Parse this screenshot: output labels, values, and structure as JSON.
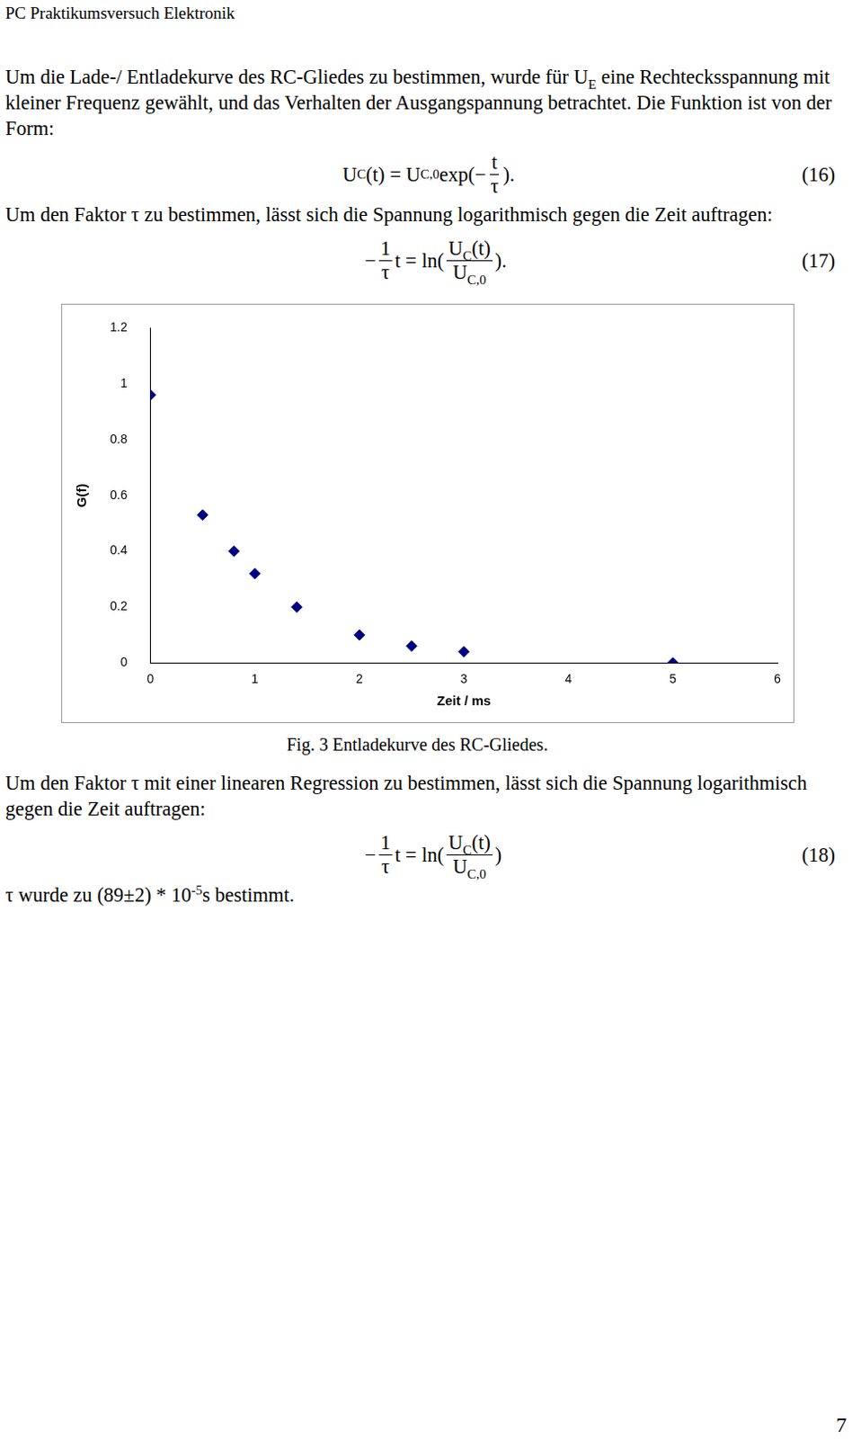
{
  "document": {
    "header": "PC Praktikumsversuch Elektronik",
    "content": [
      {
        "kind": "paragraph",
        "parts": [
          {
            "t": "Um die Lade-/ Entladekurve des RC-Gliedes zu bestimmen, wurde für U"
          },
          {
            "sub": "E"
          },
          {
            "t": " eine Rechtecksspannung mit kleiner Frequenz gewählt, und das Verhalten der Ausgangspannung betrachtet. Die Funktion ist von der Form:"
          }
        ]
      },
      {
        "kind": "equation",
        "number": "(16)",
        "parts": [
          {
            "t": "U"
          },
          {
            "sub": "C"
          },
          {
            "t": "(t) = U"
          },
          {
            "sub": "C,0"
          },
          {
            "t": " exp(−"
          },
          {
            "frac": {
              "num": [
                {
                  "t": "t"
                }
              ],
              "den": [
                {
                  "t": "τ"
                }
              ]
            }
          },
          {
            "t": ")."
          }
        ]
      },
      {
        "kind": "paragraph",
        "parts": [
          {
            "t": "Um den Faktor τ zu bestimmen, lässt sich die Spannung logarithmisch gegen die Zeit auftragen:"
          }
        ]
      },
      {
        "kind": "equation",
        "number": "(17)",
        "parts": [
          {
            "t": "−"
          },
          {
            "frac": {
              "num": [
                {
                  "t": "1"
                }
              ],
              "den": [
                {
                  "t": "τ"
                }
              ]
            }
          },
          {
            "t": "t = ln("
          },
          {
            "frac": {
              "num": [
                {
                  "t": "U"
                },
                {
                  "sub": "C"
                },
                {
                  "t": "(t)"
                }
              ],
              "den": [
                {
                  "t": "U"
                },
                {
                  "sub": "C,0"
                }
              ]
            }
          },
          {
            "t": ")."
          }
        ]
      },
      {
        "kind": "figure",
        "caption": "Fig. 3 Entladekurve des RC-Gliedes."
      },
      {
        "kind": "paragraph",
        "parts": [
          {
            "t": "Um den Faktor τ mit einer linearen Regression zu bestimmen, lässt sich die Spannung logarithmisch gegen die Zeit auftragen:"
          }
        ]
      },
      {
        "kind": "equation",
        "number": "(18)",
        "parts": [
          {
            "t": "−"
          },
          {
            "frac": {
              "num": [
                {
                  "t": "1"
                }
              ],
              "den": [
                {
                  "t": "τ"
                }
              ]
            }
          },
          {
            "t": "t = ln("
          },
          {
            "frac": {
              "num": [
                {
                  "t": "U"
                },
                {
                  "sub": "C"
                },
                {
                  "t": "(t)"
                }
              ],
              "den": [
                {
                  "t": "U"
                },
                {
                  "sub": "C,0"
                }
              ]
            }
          },
          {
            "t": ")"
          }
        ]
      },
      {
        "kind": "paragraph",
        "parts": [
          {
            "t": "τ wurde zu (89±2) * 10"
          },
          {
            "sup": "-5"
          },
          {
            "t": "s bestimmt."
          }
        ]
      }
    ],
    "page_number": "7"
  },
  "chart_data": {
    "type": "scatter",
    "x_label": "Zeit / ms",
    "y_label": "G(f)",
    "x": [
      0,
      0.5,
      0.8,
      1.0,
      1.4,
      2.0,
      2.5,
      3.0,
      5.0
    ],
    "values": [
      0.96,
      0.53,
      0.4,
      0.32,
      0.2,
      0.1,
      0.06,
      0.04,
      0
    ],
    "color": "#000080",
    "marker": "diamond",
    "xlim": [
      0,
      6
    ],
    "xticks": [
      0,
      1,
      2,
      3,
      4,
      5,
      6
    ],
    "ylim": [
      0,
      1.2
    ],
    "yticks": [
      0,
      0.2,
      0.4,
      0.6,
      0.8,
      1,
      1.2
    ],
    "grid": false
  }
}
